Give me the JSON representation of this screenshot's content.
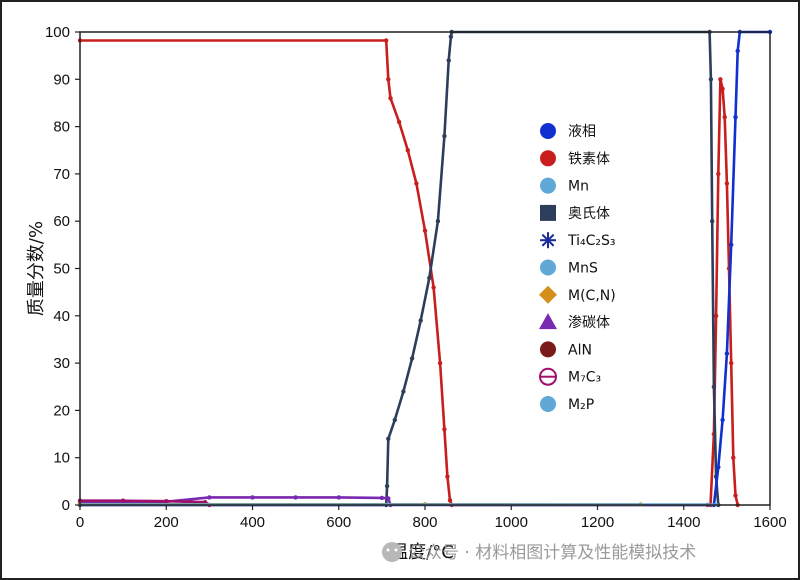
{
  "chart_data": {
    "type": "line",
    "title": "",
    "xlabel": "温度/°C",
    "ylabel": "质量分数/%",
    "xlim": [
      0,
      1600
    ],
    "ylim": [
      0,
      100
    ],
    "xticks": [
      "0",
      "200",
      "400",
      "600",
      "800",
      "1000",
      "1200",
      "1400",
      "1600"
    ],
    "yticks": [
      "0",
      "10",
      "20",
      "30",
      "40",
      "50",
      "60",
      "70",
      "80",
      "90",
      "100"
    ],
    "grid": false,
    "legend_position": "center-right",
    "legend": [
      {
        "label": "液相",
        "color": "#1030d0",
        "marker": "circle"
      },
      {
        "label": "铁素体",
        "color": "#c81e1e",
        "marker": "circle"
      },
      {
        "label": "Mn",
        "color": "#5fa8d8",
        "marker": "circle"
      },
      {
        "label": "奥氏体",
        "color": "#2c3e5c",
        "marker": "square"
      },
      {
        "label": "Ti₄C₂S₃",
        "color": "#1a2a9a",
        "marker": "asterisk"
      },
      {
        "label": "MnS",
        "color": "#5fa8d8",
        "marker": "circle"
      },
      {
        "label": "M(C,N)",
        "color": "#d4901a",
        "marker": "diamond"
      },
      {
        "label": "渗碳体",
        "color": "#7a2ab0",
        "marker": "triangle"
      },
      {
        "label": "AlN",
        "color": "#7a1a1a",
        "marker": "circle"
      },
      {
        "label": "M₇C₃",
        "color": "#a0106a",
        "marker": "theta"
      },
      {
        "label": "M₂P",
        "color": "#5fa8d8",
        "marker": "circle"
      }
    ],
    "series": [
      {
        "name": "铁素体",
        "color": "#c81e1e",
        "x": [
          0,
          710,
          715,
          720,
          740,
          760,
          780,
          800,
          820,
          835,
          845,
          852,
          858,
          862,
          1455,
          1462,
          1470,
          1475,
          1480,
          1485,
          1490,
          1495,
          1500,
          1505,
          1510,
          1515,
          1520,
          1525
        ],
        "y": [
          98.2,
          98.2,
          90,
          86,
          81,
          75,
          68,
          58,
          46,
          30,
          16,
          6,
          1,
          0,
          0,
          0,
          15,
          40,
          70,
          90,
          88,
          82,
          68,
          50,
          30,
          10,
          2,
          0
        ]
      },
      {
        "name": "奥氏体",
        "color": "#2c3e5c",
        "x": [
          0,
          710,
          712,
          715,
          730,
          750,
          770,
          790,
          810,
          830,
          845,
          855,
          860,
          862,
          1460,
          1463,
          1466,
          1470,
          1475,
          1480
        ],
        "y": [
          0,
          0,
          4,
          14,
          18,
          24,
          31,
          39,
          48,
          60,
          78,
          94,
          99,
          100,
          100,
          90,
          60,
          25,
          6,
          0
        ]
      },
      {
        "name": "液相",
        "color": "#1030d0",
        "x": [
          0,
          1470,
          1480,
          1490,
          1500,
          1510,
          1520,
          1525,
          1530,
          1600
        ],
        "y": [
          0,
          0,
          8,
          18,
          32,
          55,
          82,
          96,
          100,
          100
        ]
      },
      {
        "name": "渗碳体",
        "color": "#7a2ab0",
        "x": [
          0,
          100,
          200,
          300,
          400,
          500,
          600,
          700,
          715,
          720
        ],
        "y": [
          0.4,
          0.5,
          0.7,
          1.6,
          1.6,
          1.6,
          1.6,
          1.5,
          1.4,
          0
        ]
      },
      {
        "name": "M₇C₃",
        "color": "#a0106a",
        "x": [
          0,
          100,
          200,
          290,
          300
        ],
        "y": [
          0.9,
          0.9,
          0.8,
          0.6,
          0
        ]
      },
      {
        "name": "M(C,N)",
        "color": "#d4901a",
        "x": [
          0,
          800,
          1300
        ],
        "y": [
          0.15,
          0.15,
          0.1
        ]
      },
      {
        "name": "MnS",
        "color": "#5fa8d8",
        "x": [
          0,
          1480
        ],
        "y": [
          0.1,
          0.1
        ]
      }
    ]
  },
  "watermark": {
    "text": "公众号 · 材料相图计算及性能模拟技术"
  }
}
